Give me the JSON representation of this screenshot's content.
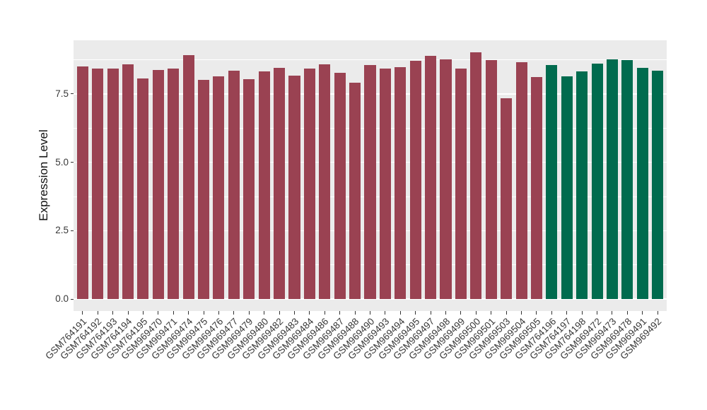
{
  "chart_data": {
    "type": "bar",
    "title": "",
    "xlabel": "",
    "ylabel": "Expression Level",
    "ylim": [
      0,
      9.47
    ],
    "yticks": [
      0,
      2.5,
      5,
      7.5
    ],
    "ytick_labels": [
      "0.0",
      "2.5",
      "5.0",
      "7.5"
    ],
    "grid": {
      "on": true,
      "major": [
        0,
        2.5,
        5,
        7.5
      ],
      "minor": [
        1.25,
        3.75,
        6.25,
        8.75
      ]
    },
    "legend": "none",
    "categories": [
      "GSM764191",
      "GSM764192",
      "GSM764193",
      "GSM764194",
      "GSM764195",
      "GSM969470",
      "GSM969471",
      "GSM969474",
      "GSM969475",
      "GSM969476",
      "GSM969477",
      "GSM969479",
      "GSM969480",
      "GSM969482",
      "GSM969483",
      "GSM969484",
      "GSM969486",
      "GSM969487",
      "GSM969488",
      "GSM969490",
      "GSM969493",
      "GSM969494",
      "GSM969495",
      "GSM969497",
      "GSM969498",
      "GSM969499",
      "GSM969500",
      "GSM969501",
      "GSM969503",
      "GSM969504",
      "GSM969505",
      "GSM764196",
      "GSM764197",
      "GSM764198",
      "GSM969472",
      "GSM969473",
      "GSM969478",
      "GSM969491",
      "GSM969492"
    ],
    "values": [
      8.52,
      8.44,
      8.44,
      8.59,
      8.06,
      8.38,
      8.44,
      8.92,
      8.02,
      8.15,
      8.35,
      8.04,
      8.33,
      8.46,
      8.17,
      8.43,
      8.58,
      8.27,
      7.91,
      8.56,
      8.43,
      8.48,
      8.72,
      8.9,
      8.77,
      8.43,
      9.02,
      8.74,
      7.35,
      8.66,
      8.12,
      8.57,
      8.15,
      8.32,
      8.62,
      8.76,
      8.74,
      8.46,
      8.35
    ],
    "groups": [
      "red",
      "red",
      "red",
      "red",
      "red",
      "red",
      "red",
      "red",
      "red",
      "red",
      "red",
      "red",
      "red",
      "red",
      "red",
      "red",
      "red",
      "red",
      "red",
      "red",
      "red",
      "red",
      "red",
      "red",
      "red",
      "red",
      "red",
      "red",
      "red",
      "red",
      "red",
      "green",
      "green",
      "green",
      "green",
      "green",
      "green",
      "green",
      "green"
    ],
    "colors": {
      "red": "#9A4252",
      "green": "#006B4E",
      "panel_bg": "#EBEBEB",
      "grid": "#FFFFFF",
      "axis_text": "#383838",
      "axis_title": "#111111",
      "tick": "#333333",
      "figure_bg": "#FFFFFF"
    }
  }
}
